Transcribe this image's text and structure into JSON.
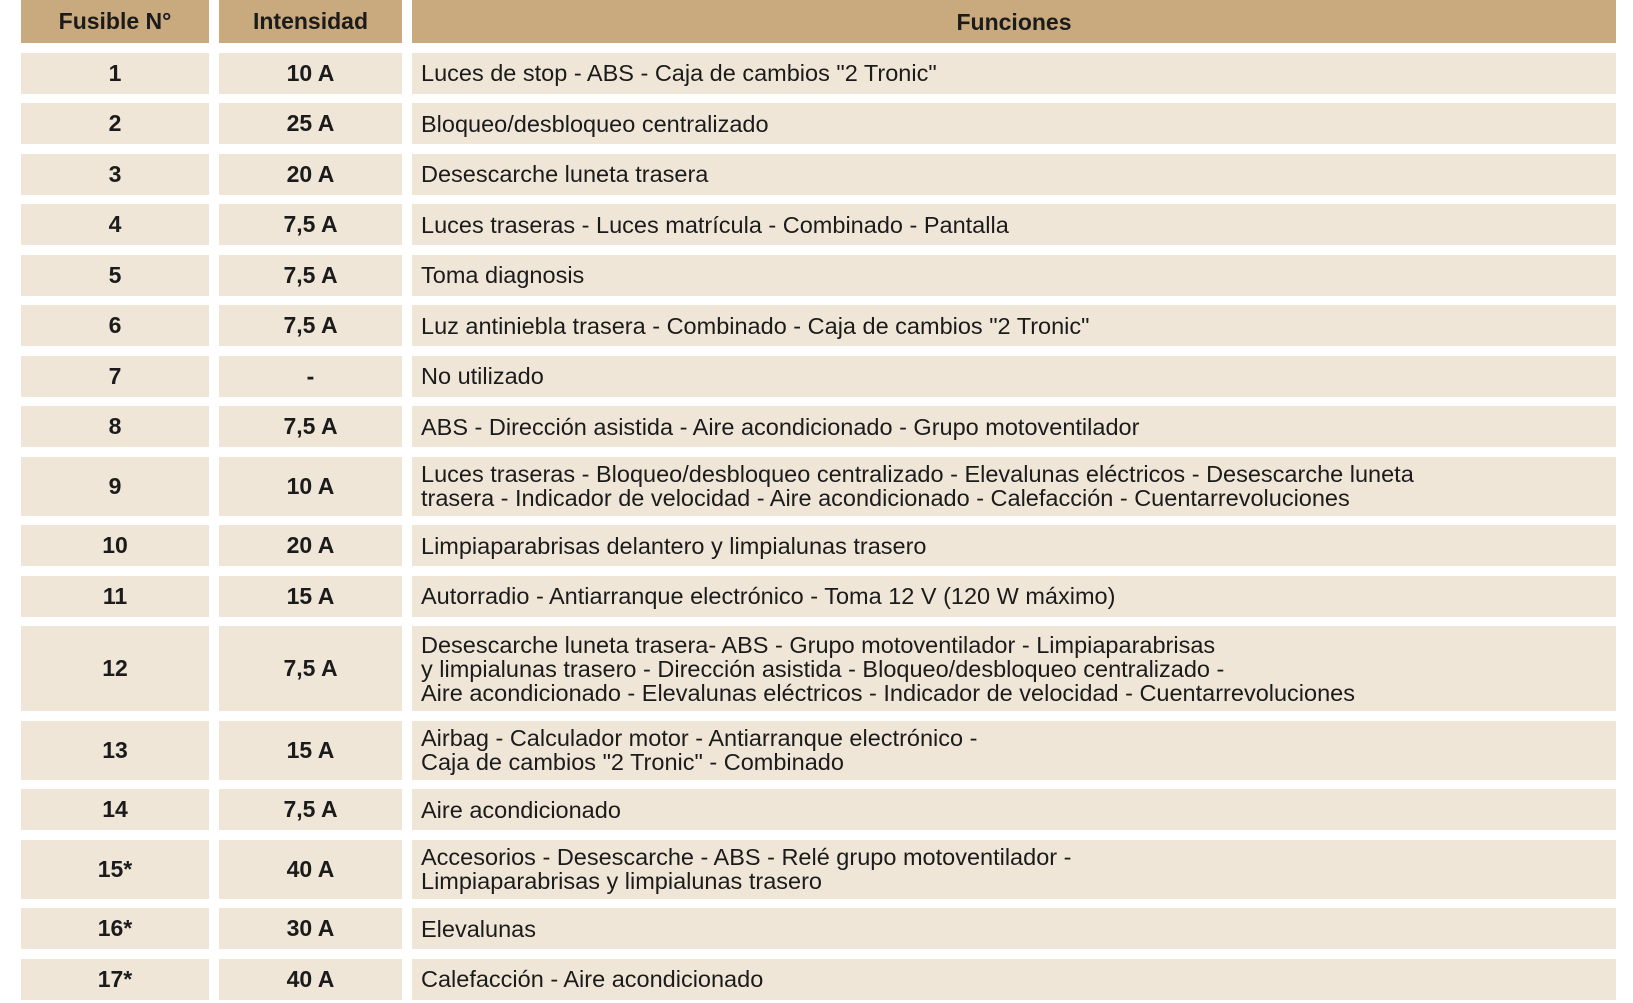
{
  "header": {
    "fuse": "Fusible N°",
    "amps": "Intensidad",
    "functions": "Funciones"
  },
  "colors": {
    "header_bg": "#c9aa7e",
    "row_bg": "#efe6d8"
  },
  "rows": [
    {
      "n": "1",
      "a": "10 A",
      "f": "Luces de stop - ABS - Caja de cambios \"2 Tronic\""
    },
    {
      "n": "2",
      "a": "25 A",
      "f": "Bloqueo/desbloqueo centralizado"
    },
    {
      "n": "3",
      "a": "20 A",
      "f": "Desescarche luneta trasera"
    },
    {
      "n": "4",
      "a": "7,5 A",
      "f": "Luces traseras - Luces matrícula - Combinado - Pantalla"
    },
    {
      "n": "5",
      "a": "7,5 A",
      "f": "Toma diagnosis"
    },
    {
      "n": "6",
      "a": "7,5 A",
      "f": "Luz antiniebla trasera - Combinado - Caja de cambios \"2 Tronic\""
    },
    {
      "n": "7",
      "a": "-",
      "f": "No utilizado"
    },
    {
      "n": "8",
      "a": "7,5 A",
      "f": "ABS - Dirección asistida - Aire acondicionado - Grupo motoventilador"
    },
    {
      "n": "9",
      "a": "10 A",
      "f": "Luces traseras - Bloqueo/desbloqueo centralizado - Elevalunas eléctricos - Desescarche luneta\ntrasera - Indicador de velocidad - Aire acondicionado - Calefacción - Cuentarrevoluciones"
    },
    {
      "n": "10",
      "a": "20 A",
      "f": "Limpiaparabrisas delantero y limpialunas trasero"
    },
    {
      "n": "11",
      "a": "15 A",
      "f": "Autorradio - Antiarranque electrónico - Toma 12 V (120 W máximo)"
    },
    {
      "n": "12",
      "a": "7,5 A",
      "f": "Desescarche luneta trasera- ABS - Grupo motoventilador - Limpiaparabrisas\ny limpialunas trasero - Dirección asistida - Bloqueo/desbloqueo centralizado -\nAire acondicionado - Elevalunas eléctricos - Indicador de velocidad - Cuentarrevoluciones"
    },
    {
      "n": "13",
      "a": "15 A",
      "f": "Airbag - Calculador motor - Antiarranque electrónico -\nCaja de cambios \"2 Tronic\" - Combinado"
    },
    {
      "n": "14",
      "a": "7,5 A",
      "f": "Aire acondicionado"
    },
    {
      "n": "15*",
      "a": "40 A",
      "f": "Accesorios - Desescarche - ABS - Relé grupo motoventilador -\nLimpiaparabrisas y limpialunas trasero"
    },
    {
      "n": "16*",
      "a": "30 A",
      "f": "Elevalunas"
    },
    {
      "n": "17*",
      "a": "40 A",
      "f": "Calefacción - Aire acondicionado"
    }
  ]
}
